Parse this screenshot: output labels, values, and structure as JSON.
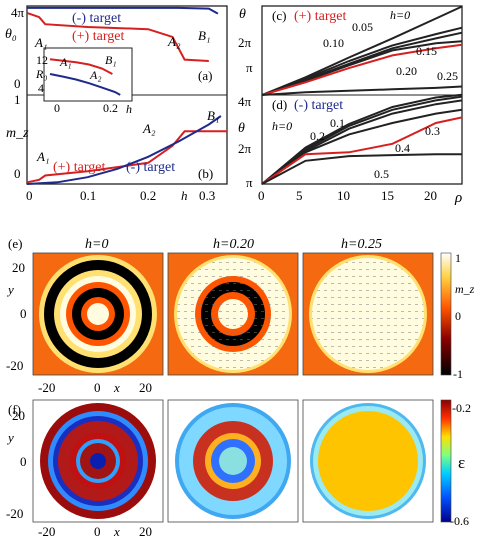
{
  "colors": {
    "red": "#d62020",
    "blue": "#1f2a8c",
    "black": "#222222",
    "orange": "#f56a10"
  },
  "panels": {
    "a": {
      "letter": "(a)",
      "ylabel_top": "4π",
      "ylabel_sym": "θ₀",
      "ylabel_zero": "0",
      "ylabel_one": "1",
      "legend_minus": "(-) target",
      "legend_plus": "(+) target",
      "labels": [
        "A₁",
        "A₂",
        "B₁"
      ]
    },
    "inset": {
      "ylabel": "R₀",
      "yticks": [
        "12",
        "4"
      ],
      "xticks": [
        "0",
        "0.2"
      ],
      "xlabel": "h",
      "labels": [
        "A₁",
        "A₂",
        "B₁"
      ]
    },
    "b": {
      "letter": "(b)",
      "ylabel": "m_z",
      "yticks": [
        "0"
      ],
      "legend": "(+) target (-) target",
      "legend_plus": "(+) target",
      "legend_minus": "(-) target",
      "labels": [
        "A₁",
        "A₂",
        "B₁"
      ],
      "xticks": [
        "0",
        "0.1",
        "0.2",
        "0.3"
      ],
      "xlabel": "h"
    },
    "c": {
      "letter": "(c)",
      "title": "(+) target",
      "ylabel": "θ",
      "yticks": [
        "4π",
        "2π",
        "π"
      ],
      "curve_labels": [
        "h=0",
        "0.05",
        "0.10",
        "0.15",
        "0.20",
        "0.25"
      ]
    },
    "d": {
      "letter": "(d)",
      "title": "(-) target",
      "ylabel": "θ",
      "yticks": [
        "4π",
        "2π",
        "π"
      ],
      "curve_labels": [
        "h=0",
        "0.1",
        "0.2",
        "0.3",
        "0.4",
        "0.5"
      ],
      "xticks": [
        "0",
        "5",
        "10",
        "15",
        "20"
      ],
      "xlabel": "ρ"
    },
    "e": {
      "letter": "(e)",
      "titles": [
        "h=0",
        "h=0.20",
        "h=0.25"
      ],
      "ylabel": "y",
      "xlabel": "x",
      "yticks": [
        "20",
        "0",
        "-20"
      ],
      "xticks": [
        "-20",
        "0",
        "20"
      ],
      "colorbar": {
        "label": "m_z",
        "ticks": [
          "1",
          "0",
          "-1"
        ]
      }
    },
    "f": {
      "letter": "(f)",
      "ylabel": "y",
      "xlabel": "x",
      "yticks": [
        "20",
        "0",
        "-20"
      ],
      "xticks": [
        "-20",
        "0",
        "20"
      ],
      "colorbar": {
        "label": "ε",
        "ticks": [
          "-0.2",
          "-0.6"
        ]
      }
    }
  },
  "chart_data": [
    {
      "type": "line",
      "panel": "a",
      "xlim": [
        0,
        0.33
      ],
      "series": [
        {
          "name": "(-) target",
          "x": [
            0,
            0.05,
            0.1,
            0.15,
            0.2,
            0.25,
            0.3,
            0.315
          ],
          "y": [
            12.3,
            12.3,
            12.3,
            12.3,
            12.3,
            12.3,
            12.2,
            11.5
          ]
        },
        {
          "name": "(+) target",
          "x": [
            0,
            0.02,
            0.03,
            0.1,
            0.2,
            0.24,
            0.26,
            0.3
          ],
          "y": [
            11.6,
            11.0,
            10.0,
            9.6,
            9.3,
            8.2,
            5.0,
            4.8
          ]
        }
      ]
    },
    {
      "type": "line",
      "panel": "b",
      "xlim": [
        0,
        0.33
      ],
      "series": [
        {
          "name": "(+) target",
          "x": [
            0,
            0.02,
            0.03,
            0.1,
            0.2,
            0.24,
            0.26,
            0.33
          ],
          "y": [
            0.02,
            0.05,
            0.1,
            0.15,
            0.25,
            0.45,
            0.62,
            0.62
          ]
        },
        {
          "name": "(-) target",
          "x": [
            0,
            0.05,
            0.1,
            0.15,
            0.2,
            0.25,
            0.3,
            0.32
          ],
          "y": [
            0.0,
            0.02,
            0.08,
            0.18,
            0.32,
            0.5,
            0.7,
            0.8
          ]
        }
      ]
    },
    {
      "type": "line",
      "panel": "c",
      "xlim": [
        0,
        23
      ],
      "ylim": [
        0,
        12.57
      ],
      "series": [
        {
          "name": "h=0",
          "x": [
            0,
            5,
            10,
            15,
            20,
            23
          ],
          "y": [
            0.0,
            2.5,
            5.3,
            8.0,
            10.8,
            12.5
          ]
        },
        {
          "name": "0.05",
          "x": [
            0,
            5,
            10,
            15,
            20,
            23
          ],
          "y": [
            0.0,
            2.3,
            4.8,
            7.0,
            8.6,
            9.5
          ]
        },
        {
          "name": "0.10",
          "x": [
            0,
            5,
            10,
            15,
            20,
            23
          ],
          "y": [
            0.0,
            2.1,
            4.4,
            6.6,
            8.0,
            8.8
          ]
        },
        {
          "name": "0.15",
          "x": [
            0,
            5,
            10,
            15,
            20,
            23
          ],
          "y": [
            0.0,
            2.0,
            4.2,
            6.3,
            7.3,
            7.6
          ]
        },
        {
          "name": "0.20",
          "x": [
            0,
            5,
            10,
            15,
            20,
            23
          ],
          "y": [
            0.0,
            1.8,
            3.8,
            5.6,
            6.6,
            7.1
          ]
        },
        {
          "name": "0.25",
          "x": [
            0,
            5,
            10,
            15,
            20,
            23
          ],
          "y": [
            0.0,
            0.4,
            0.6,
            0.8,
            1.0,
            1.2
          ]
        }
      ]
    },
    {
      "type": "line",
      "panel": "d",
      "xlim": [
        0,
        23
      ],
      "ylim": [
        3.14,
        12.57
      ],
      "series": [
        {
          "name": "h=0",
          "x": [
            0,
            5,
            10,
            15,
            20,
            23
          ],
          "y": [
            3.14,
            7.0,
            9.5,
            11.3,
            12.3,
            12.6
          ]
        },
        {
          "name": "0.1",
          "x": [
            0,
            5,
            10,
            15,
            20,
            23
          ],
          "y": [
            3.14,
            6.8,
            9.3,
            11.0,
            12.0,
            12.4
          ]
        },
        {
          "name": "0.2",
          "x": [
            0,
            5,
            10,
            15,
            20,
            23
          ],
          "y": [
            3.14,
            6.6,
            9.0,
            10.6,
            11.6,
            12.0
          ]
        },
        {
          "name": "0.3",
          "x": [
            0,
            5,
            10,
            15,
            20,
            23
          ],
          "y": [
            3.14,
            6.5,
            8.4,
            9.6,
            10.6,
            11.0
          ]
        },
        {
          "name": "0.4",
          "x": [
            0,
            5,
            10,
            15,
            20,
            23
          ],
          "y": [
            3.14,
            6.3,
            6.5,
            7.4,
            9.6,
            10.2
          ]
        },
        {
          "name": "0.5",
          "x": [
            0,
            5,
            10,
            15,
            20,
            23
          ],
          "y": [
            3.14,
            5.6,
            6.1,
            6.2,
            6.3,
            6.3
          ]
        }
      ]
    }
  ]
}
